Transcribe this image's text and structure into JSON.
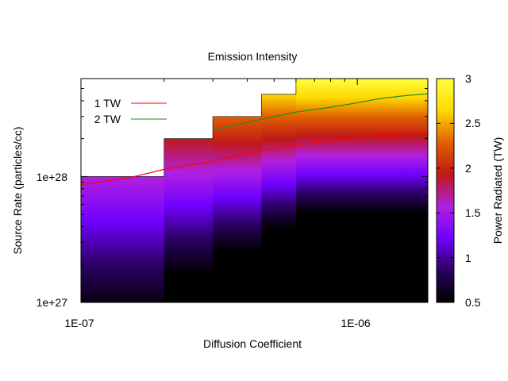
{
  "chart_data": {
    "type": "heatmap",
    "title": "Emission Intensity",
    "xlabel": "Diffusion Coefficient",
    "ylabel": "Source Rate (particles/cc)",
    "xscale": "log",
    "yscale": "log",
    "xlim": [
      1e-07,
      1.8e-06
    ],
    "ylim": [
      1e+27,
      6e+28
    ],
    "x_tick_labels": [
      {
        "value": 1e-07,
        "label": "1E-07"
      },
      {
        "value": 1e-06,
        "label": "1E-06"
      }
    ],
    "y_tick_labels": [
      {
        "value": 1e+27,
        "label": "1e+27"
      },
      {
        "value": 1e+28,
        "label": "1e+28"
      }
    ],
    "colorbar": {
      "label": "Power Radiated (TW)",
      "range": [
        0.5,
        3
      ],
      "tick_labels": [
        "0.5",
        "1",
        "1.5",
        "2",
        "2.5",
        "3"
      ],
      "colormap": [
        "#000000",
        "#2a0060",
        "#7000ff",
        "#b020e0",
        "#c01818",
        "#e06000",
        "#ffd800",
        "#ffff40"
      ]
    },
    "legend_placement": "top-left",
    "grid": false,
    "domain_boundary": {
      "description": "upper edge of computed region (data absent above)",
      "steps": [
        {
          "x0": 1e-07,
          "x1": 2e-07,
          "y_max": 1e+28
        },
        {
          "x0": 2e-07,
          "x1": 3e-07,
          "y_max": 2e+28
        },
        {
          "x0": 3e-07,
          "x1": 4.5e-07,
          "y_max": 3e+28
        },
        {
          "x0": 4.5e-07,
          "x1": 6e-07,
          "y_max": 4.5e+28
        },
        {
          "x0": 6e-07,
          "x1": 1.8e-06,
          "y_max": 6e+28
        }
      ]
    },
    "series": [
      {
        "name": "1 TW",
        "color": "#ff0000",
        "x": [
          1e-07,
          1.5e-07,
          2e-07,
          3e-07,
          4.5e-07,
          6e-07,
          8e-07,
          1e-06,
          1.2e-06,
          1.5e-06,
          1.8e-06
        ],
        "y": [
          8.6e+27,
          9.8e+27,
          1.14e+28,
          1.32e+28,
          1.6e+28,
          1.78e+28,
          1.92e+28,
          2.05e+28,
          2.15e+28,
          2.18e+28,
          2.22e+28
        ]
      },
      {
        "name": "2 TW",
        "color": "#228b22",
        "x": [
          3e-07,
          4.5e-07,
          6e-07,
          8e-07,
          1e-06,
          1.2e-06,
          1.5e-06,
          1.8e-06
        ],
        "y": [
          2.35e+28,
          2.85e+28,
          3.25e+28,
          3.55e+28,
          3.85e+28,
          4.15e+28,
          4.4e+28,
          4.55e+28
        ]
      }
    ]
  }
}
